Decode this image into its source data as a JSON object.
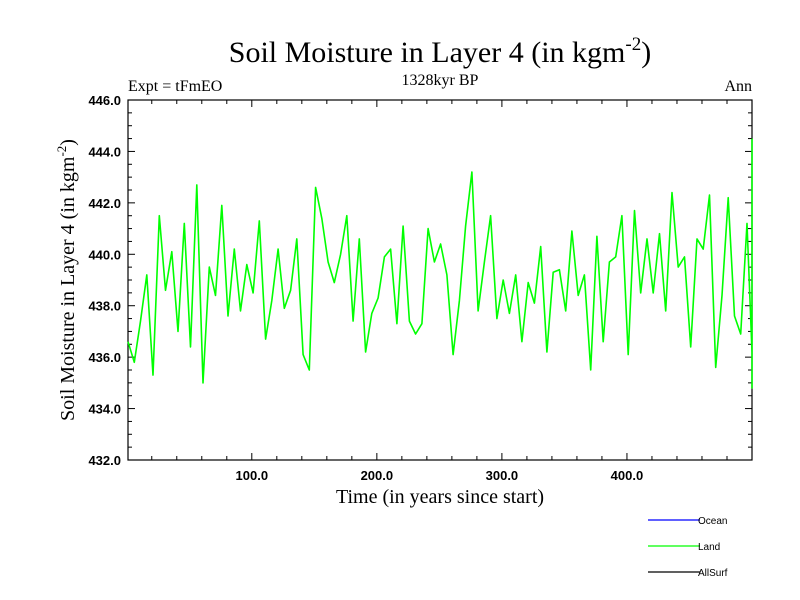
{
  "chart_data": {
    "type": "line",
    "title": "Soil Moisture in Layer 4 (in kgm",
    "title_sup": "-2",
    "title_close": ")",
    "left_label": "Expt = tFmEO",
    "center_label": "1328kyr BP",
    "right_label": "Ann",
    "xlabel": "Time (in years since start)",
    "ylabel": "Soil Moisture in Layer 4 (in kgm",
    "ylabel_sup": "-2",
    "ylabel_close": ")",
    "xlim": [
      1,
      500
    ],
    "ylim": [
      432.0,
      446.0
    ],
    "xticks": [
      100,
      200,
      300,
      400
    ],
    "xtick_labels": [
      "100.0",
      "200.0",
      "300.0",
      "400.0"
    ],
    "yticks": [
      432,
      434,
      436,
      438,
      440,
      442,
      444,
      446
    ],
    "ytick_labels": [
      "432.0",
      "434.0",
      "436.0",
      "438.0",
      "440.0",
      "442.0",
      "444.0",
      "446.0"
    ],
    "legend": [
      {
        "name": "Ocean",
        "color": "#0000ff"
      },
      {
        "name": "Land",
        "color": "#00ff00"
      },
      {
        "name": "AllSurf",
        "color": "#000000"
      }
    ],
    "series": [
      {
        "name": "Land",
        "color": "#00ff00",
        "x_start": 1,
        "x_step": 5,
        "values": [
          436.6,
          435.8,
          437.4,
          439.2,
          435.3,
          441.5,
          438.6,
          440.1,
          437.0,
          441.2,
          436.4,
          442.7,
          435.0,
          439.5,
          438.4,
          441.9,
          437.6,
          440.2,
          437.8,
          439.6,
          438.5,
          441.3,
          436.7,
          438.2,
          440.2,
          437.9,
          438.6,
          440.6,
          436.1,
          435.5,
          442.6,
          441.4,
          439.7,
          438.9,
          440.0,
          441.5,
          437.4,
          440.6,
          436.2,
          437.7,
          438.3,
          439.9,
          440.2,
          437.3,
          441.1,
          437.4,
          436.9,
          437.3,
          441.0,
          439.7,
          440.4,
          439.2,
          436.1,
          438.2,
          441.1,
          443.2,
          437.8,
          439.7,
          441.5,
          437.5,
          439.0,
          437.7,
          439.2,
          436.6,
          438.9,
          438.1,
          440.3,
          436.2,
          439.3,
          439.4,
          437.8,
          440.9,
          438.4,
          439.2,
          435.5,
          440.7,
          436.6,
          439.7,
          439.9,
          441.5,
          436.1,
          441.7,
          438.5,
          440.6,
          438.5,
          440.8,
          437.8,
          442.4,
          439.5,
          439.9,
          436.4,
          440.6,
          440.2,
          442.3,
          435.6,
          438.4,
          442.2,
          437.6,
          436.9,
          441.2,
          436.2,
          440.9,
          439.3,
          437.7,
          436.2,
          440.2,
          437.4,
          437.8,
          439.5,
          439.3,
          437.8,
          438.9,
          440.8,
          434.8,
          439.8,
          436.2,
          438.4,
          441.3,
          437.3,
          440.6,
          437.4,
          439.0,
          436.8,
          442.3,
          438.0,
          437.9,
          440.3,
          436.1,
          436.3,
          441.1,
          438.2,
          438.4,
          437.8,
          439.0,
          438.0,
          443.0,
          438.4,
          441.7,
          439.3,
          437.5,
          438.0,
          440.3,
          438.7,
          439.0,
          436.7,
          438.3,
          440.6,
          440.7,
          440.5,
          437.6,
          440.9,
          440.1,
          439.2,
          438.9,
          437.6,
          441.9,
          437.3,
          439.9,
          437.6,
          435.7,
          435.0,
          437.5,
          438.3,
          442.3,
          439.9,
          436.8,
          438.2,
          437.4,
          438.9,
          440.1,
          440.5,
          439.5,
          438.8,
          442.0,
          440.9,
          437.4,
          437.2,
          439.9,
          435.7,
          437.3,
          436.6,
          441.4,
          441.3,
          441.0,
          436.5,
          437.4,
          439.7,
          441.1,
          438.1,
          439.5,
          439.5,
          437.5,
          440.3,
          441.0,
          437.7,
          437.0,
          442.6,
          438.3,
          437.9,
          438.6,
          440.4,
          440.9,
          438.2,
          437.2,
          439.1,
          437.3,
          440.1,
          440.4,
          438.0,
          441.8,
          436.8,
          441.6,
          440.1,
          439.5,
          438.6,
          436.4,
          437.6,
          441.3,
          440.1,
          438.4,
          440.2,
          440.8,
          437.9,
          437.2,
          441.1,
          439.3,
          441.7,
          437.8,
          437.6,
          441.4,
          439.2,
          438.5,
          441.3,
          439.4,
          440.3,
          440.6,
          438.4,
          441.4,
          440.0,
          441.8,
          437.7,
          440.0,
          441.7,
          440.0,
          441.9,
          442.0,
          439.9,
          441.7,
          438.2,
          440.1,
          437.9,
          439.9,
          441.3,
          440.2,
          437.1,
          438.5,
          443.0,
          441.1,
          439.4,
          442.4,
          439.1,
          441.2,
          440.3,
          437.6,
          441.0,
          444.5
        ]
      }
    ]
  }
}
